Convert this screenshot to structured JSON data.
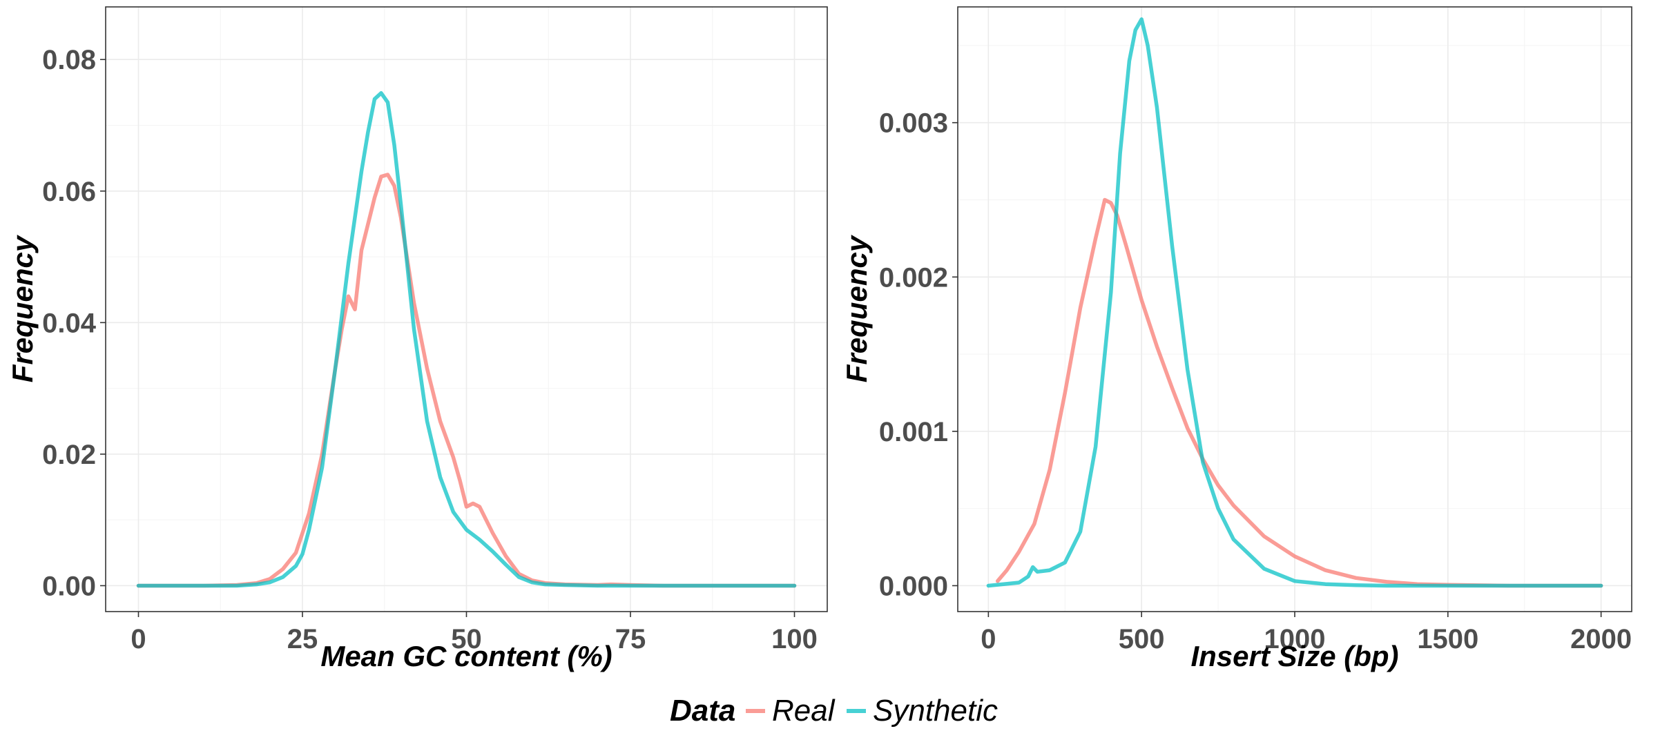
{
  "colors": {
    "real": "#F8766D",
    "synthetic": "#00BFC4"
  },
  "legend": {
    "title": "Data",
    "items": [
      {
        "label": "Real",
        "color": "#F8766D"
      },
      {
        "label": "Synthetic",
        "color": "#00BFC4"
      }
    ],
    "placement": "bottom"
  },
  "chart_data": [
    {
      "type": "line",
      "xlabel": "Mean GC content (%)",
      "ylabel": "Frequency",
      "xlim": [
        0,
        100
      ],
      "ylim": [
        0,
        0.088
      ],
      "xticks": [
        0,
        25,
        50,
        75,
        100
      ],
      "xtick_labels": [
        "0",
        "25",
        "50",
        "75",
        "100"
      ],
      "yticks": [
        0,
        0.02,
        0.04,
        0.06,
        0.08
      ],
      "ytick_labels": [
        "0.00",
        "0.02",
        "0.04",
        "0.06",
        "0.08"
      ],
      "grid": true,
      "series": [
        {
          "name": "Real",
          "color": "#F8766D",
          "x": [
            0,
            10,
            15,
            18,
            20,
            22,
            24,
            26,
            28,
            30,
            31,
            32,
            33,
            34,
            35,
            36,
            37,
            38,
            39,
            40,
            42,
            44,
            46,
            48,
            49,
            50,
            51,
            52,
            54,
            56,
            58,
            60,
            62,
            65,
            70,
            72,
            75,
            80,
            90,
            100
          ],
          "y": [
            0,
            0,
            0.0001,
            0.0004,
            0.001,
            0.0025,
            0.005,
            0.011,
            0.02,
            0.033,
            0.039,
            0.044,
            0.042,
            0.051,
            0.055,
            0.059,
            0.0622,
            0.0625,
            0.0608,
            0.056,
            0.043,
            0.033,
            0.025,
            0.0195,
            0.016,
            0.012,
            0.0125,
            0.012,
            0.008,
            0.0045,
            0.0018,
            0.0008,
            0.0004,
            0.0002,
            0.0001,
            0.0002,
            0.0001,
            0,
            0,
            0
          ]
        },
        {
          "name": "Synthetic",
          "color": "#00BFC4",
          "x": [
            0,
            15,
            18,
            20,
            22,
            24,
            25,
            26,
            28,
            30,
            32,
            34,
            35,
            36,
            37,
            38,
            39,
            40,
            42,
            44,
            46,
            48,
            50,
            52,
            54,
            56,
            58,
            60,
            62,
            65,
            70,
            100
          ],
          "y": [
            0,
            0,
            0.0002,
            0.0005,
            0.0013,
            0.003,
            0.0048,
            0.0085,
            0.018,
            0.033,
            0.049,
            0.063,
            0.069,
            0.074,
            0.0749,
            0.0735,
            0.067,
            0.058,
            0.039,
            0.025,
            0.0165,
            0.0112,
            0.0085,
            0.007,
            0.0052,
            0.0032,
            0.0013,
            0.0005,
            0.0002,
            0.0001,
            0,
            0
          ]
        }
      ]
    },
    {
      "type": "line",
      "xlabel": "Insert Size (bp)",
      "ylabel": "Frequency",
      "xlim": [
        0,
        2000
      ],
      "ylim": [
        0,
        0.00375
      ],
      "xticks": [
        0,
        500,
        1000,
        1500,
        2000
      ],
      "xtick_labels": [
        "0",
        "500",
        "1000",
        "1500",
        "2000"
      ],
      "yticks": [
        0,
        0.001,
        0.002,
        0.003
      ],
      "ytick_labels": [
        "0.000",
        "0.001",
        "0.002",
        "0.003"
      ],
      "grid": true,
      "series": [
        {
          "name": "Real",
          "color": "#F8766D",
          "x": [
            30,
            60,
            100,
            150,
            200,
            250,
            300,
            350,
            380,
            400,
            420,
            450,
            500,
            550,
            600,
            650,
            700,
            750,
            800,
            900,
            1000,
            1100,
            1200,
            1300,
            1400,
            1500,
            1700,
            2000
          ],
          "y": [
            3e-05,
            0.0001,
            0.00022,
            0.0004,
            0.00075,
            0.00125,
            0.0018,
            0.00225,
            0.0025,
            0.00248,
            0.0024,
            0.0022,
            0.00185,
            0.00155,
            0.00128,
            0.00102,
            0.00082,
            0.00065,
            0.00052,
            0.00032,
            0.00019,
            0.0001,
            5e-05,
            2.5e-05,
            1e-05,
            5e-06,
            0,
            0
          ]
        },
        {
          "name": "Synthetic",
          "color": "#00BFC4",
          "x": [
            0,
            100,
            130,
            145,
            160,
            200,
            250,
            300,
            350,
            400,
            430,
            460,
            480,
            500,
            520,
            550,
            600,
            650,
            700,
            750,
            800,
            900,
            1000,
            1100,
            1200,
            1300,
            2000
          ],
          "y": [
            0,
            2e-05,
            6e-05,
            0.00012,
            9e-05,
            0.0001,
            0.00015,
            0.00035,
            0.0009,
            0.0019,
            0.0028,
            0.0034,
            0.0036,
            0.00367,
            0.0035,
            0.0031,
            0.0022,
            0.0014,
            0.0008,
            0.0005,
            0.0003,
            0.00011,
            3e-05,
            1e-05,
            3e-06,
            0,
            0
          ]
        }
      ]
    }
  ]
}
